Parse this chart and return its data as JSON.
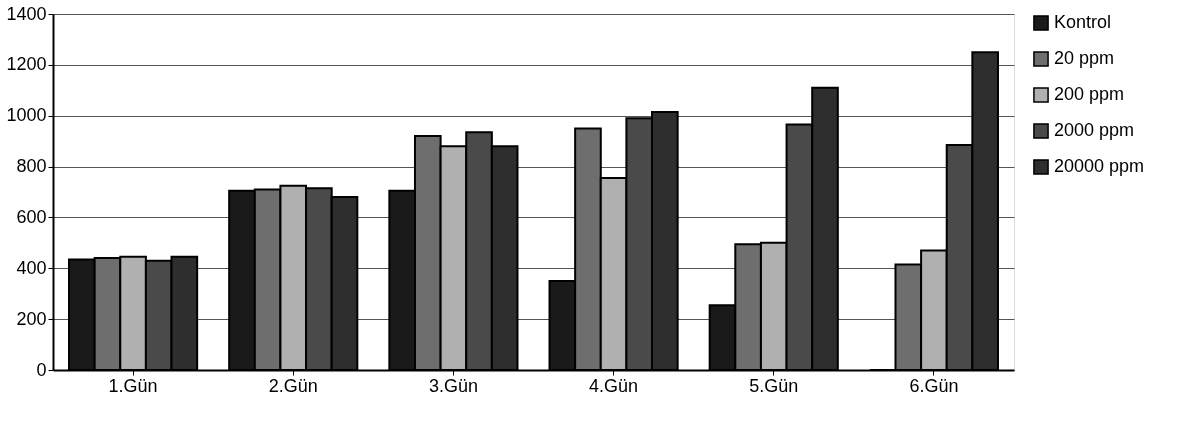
{
  "chart_data": {
    "type": "bar",
    "categories": [
      "1.Gün",
      "2.Gün",
      "3.Gün",
      "4.Gün",
      "5.Gün",
      "6.Gün"
    ],
    "series": [
      {
        "name": "Kontrol",
        "color": "#1a1a1a",
        "values": [
          435,
          705,
          705,
          350,
          255,
          0
        ]
      },
      {
        "name": "20 ppm",
        "color": "#6e6e6e",
        "values": [
          440,
          710,
          920,
          950,
          495,
          415
        ]
      },
      {
        "name": "200 ppm",
        "color": "#b0b0b0",
        "values": [
          445,
          725,
          880,
          755,
          500,
          470
        ]
      },
      {
        "name": "2000 ppm",
        "color": "#4a4a4a",
        "values": [
          430,
          715,
          935,
          990,
          965,
          885
        ]
      },
      {
        "name": "20000 ppm",
        "color": "#2e2e2e",
        "values": [
          445,
          680,
          880,
          1015,
          1110,
          1250
        ]
      }
    ],
    "ylim": [
      0,
      1400
    ],
    "yticks": [
      0,
      200,
      400,
      600,
      800,
      1000,
      1200,
      1400
    ],
    "grid": "y",
    "legend": "right"
  }
}
